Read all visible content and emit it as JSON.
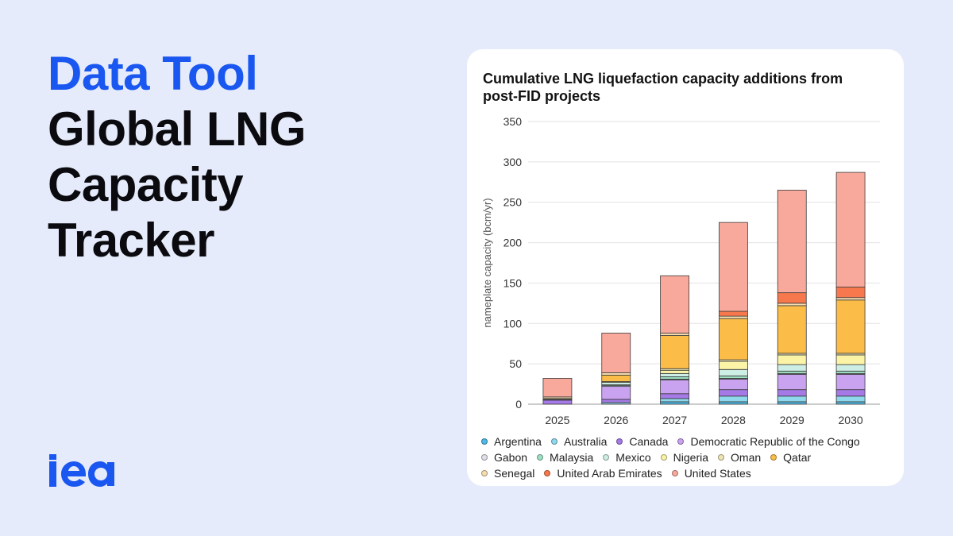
{
  "hero": {
    "kicker": "Data Tool",
    "title": "Global LNG Capacity Tracker"
  },
  "brand": {
    "logo_icon": "iea-logo",
    "color": "#1a57f0"
  },
  "chart_data": {
    "type": "bar",
    "stacked": true,
    "title": "Cumulative LNG liquefaction capacity additions from post-FID projects",
    "ylabel": "nameplate capacity (bcm/yr)",
    "xlabel": "",
    "ylim": [
      0,
      350
    ],
    "yticks": [
      0,
      50,
      100,
      150,
      200,
      250,
      300,
      350
    ],
    "grid": true,
    "legend_position": "bottom",
    "categories": [
      "2025",
      "2026",
      "2027",
      "2028",
      "2029",
      "2030"
    ],
    "series": [
      {
        "name": "Argentina",
        "color": "#4fb8e6",
        "values": [
          0,
          0,
          3,
          3,
          3,
          3
        ]
      },
      {
        "name": "Australia",
        "color": "#8fd8ec",
        "values": [
          0,
          2,
          4,
          7,
          7,
          7
        ]
      },
      {
        "name": "Canada",
        "color": "#a57ae6",
        "values": [
          5,
          4,
          6,
          8,
          8,
          8
        ]
      },
      {
        "name": "Democratic Republic of the Congo",
        "color": "#c9a2f0",
        "values": [
          1,
          16,
          17,
          13,
          19,
          19
        ]
      },
      {
        "name": "Gabon",
        "color": "#e0e0ea",
        "values": [
          0,
          1,
          1,
          1,
          1,
          1
        ]
      },
      {
        "name": "Malaysia",
        "color": "#9ee0c4",
        "values": [
          0,
          1,
          3,
          3,
          3,
          3
        ]
      },
      {
        "name": "Mexico",
        "color": "#cdeee4",
        "values": [
          0,
          3,
          4,
          8,
          8,
          8
        ]
      },
      {
        "name": "Nigeria",
        "color": "#fbf3a6",
        "values": [
          0,
          1,
          4,
          10,
          12,
          12
        ]
      },
      {
        "name": "Oman",
        "color": "#ede5b6",
        "values": [
          0,
          0,
          2,
          2,
          2,
          2
        ]
      },
      {
        "name": "Qatar",
        "color": "#fbbd48",
        "values": [
          1,
          8,
          41,
          51,
          59,
          66
        ]
      },
      {
        "name": "Senegal",
        "color": "#f6ddb0",
        "values": [
          2,
          3,
          3,
          3,
          3,
          3
        ]
      },
      {
        "name": "United Arab Emirates",
        "color": "#f7784c",
        "values": [
          0,
          0,
          0,
          6,
          13,
          13
        ]
      },
      {
        "name": "United States",
        "color": "#f9a99c",
        "values": [
          23,
          49,
          71,
          110,
          127,
          142
        ]
      }
    ]
  }
}
